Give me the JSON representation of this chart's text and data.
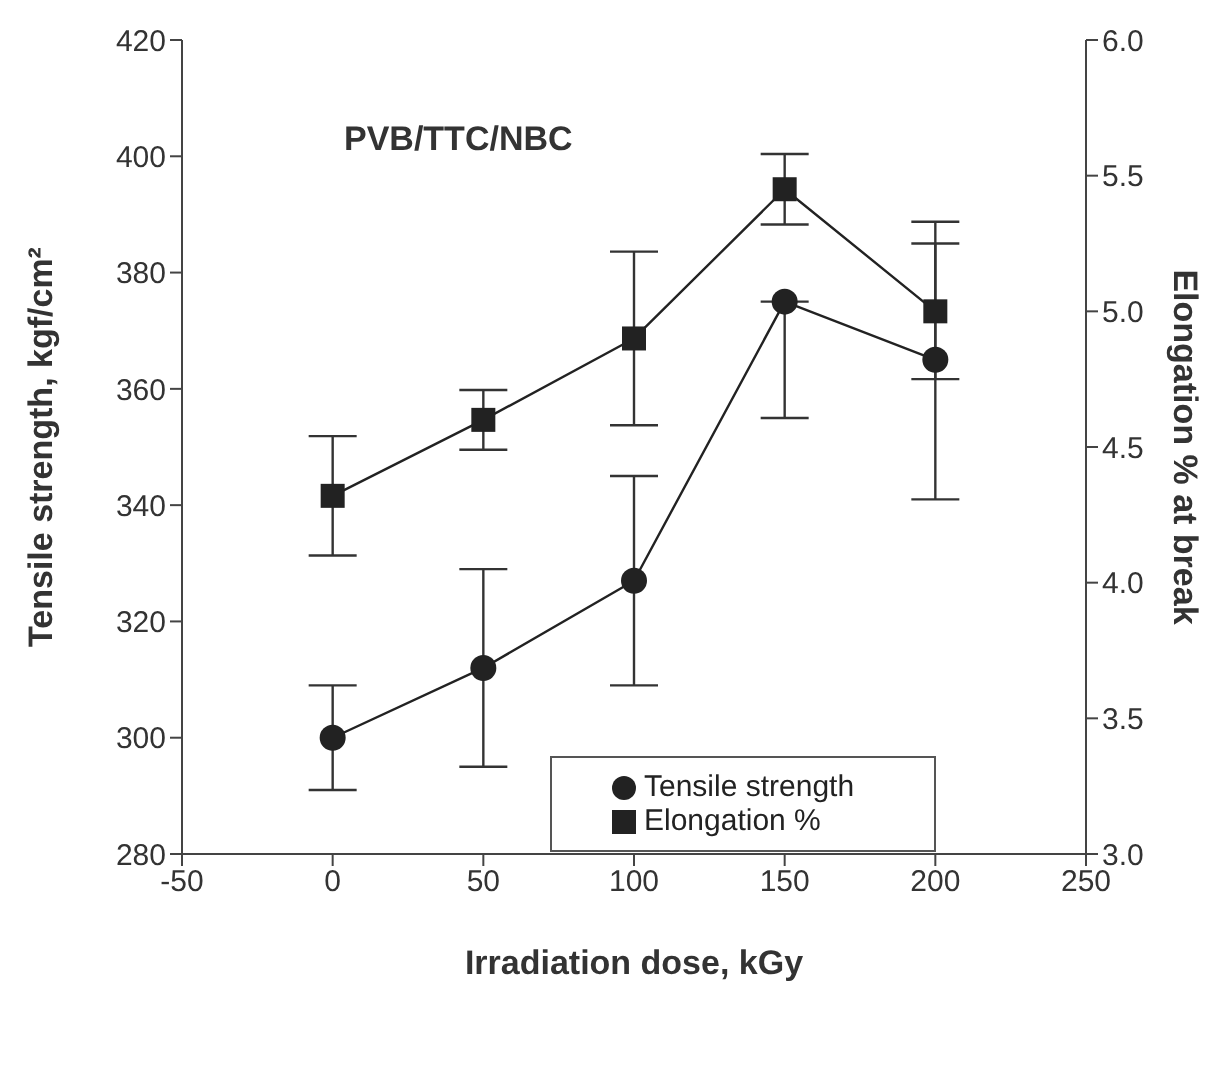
{
  "chart_data": {
    "type": "line",
    "title": "PVB/TTC/NBC",
    "xlabel": "Irradiation dose, kGy",
    "ylabel": "Tensile strength, kgf/cm²",
    "y2label": "Elongation % at break",
    "x": [
      0,
      50,
      100,
      150,
      200
    ],
    "series": [
      {
        "name": "Tensile strength",
        "color": "#222222",
        "marker": "circle",
        "values": [
          300,
          312,
          327,
          375,
          365
        ],
        "errors": [
          [
            291,
            309
          ],
          [
            295,
            329
          ],
          [
            309,
            345
          ],
          [
            355,
            375
          ],
          [
            341,
            385
          ]
        ]
      },
      {
        "name": "Elongation %",
        "color": "#222222",
        "marker": "square",
        "axis": "y2",
        "values": [
          4.32,
          4.6,
          4.9,
          5.45,
          5.0
        ],
        "errors": [
          [
            4.1,
            4.54
          ],
          [
            4.49,
            4.71
          ],
          [
            4.58,
            5.22
          ],
          [
            5.32,
            5.58
          ],
          [
            4.75,
            5.33
          ]
        ]
      }
    ],
    "xlim": [
      -50,
      250
    ],
    "xticks": [
      -50,
      0,
      50,
      100,
      150,
      200,
      250
    ],
    "ylim": [
      280,
      420
    ],
    "yticks": [
      280,
      300,
      320,
      340,
      360,
      380,
      400,
      420
    ],
    "y2lim": [
      3.0,
      6.0
    ],
    "y2ticks": [
      {
        "value": 3,
        "label": "3.0"
      },
      {
        "value": 3.5,
        "label": "3.5"
      },
      {
        "value": 4,
        "label": "4.0"
      },
      {
        "value": 4.5,
        "label": "4.5"
      },
      {
        "value": 5,
        "label": "5.0"
      },
      {
        "value": 5.5,
        "label": "5.5"
      },
      {
        "value": 6,
        "label": "6.0"
      }
    ],
    "grid": false,
    "legend": "bottom right"
  }
}
